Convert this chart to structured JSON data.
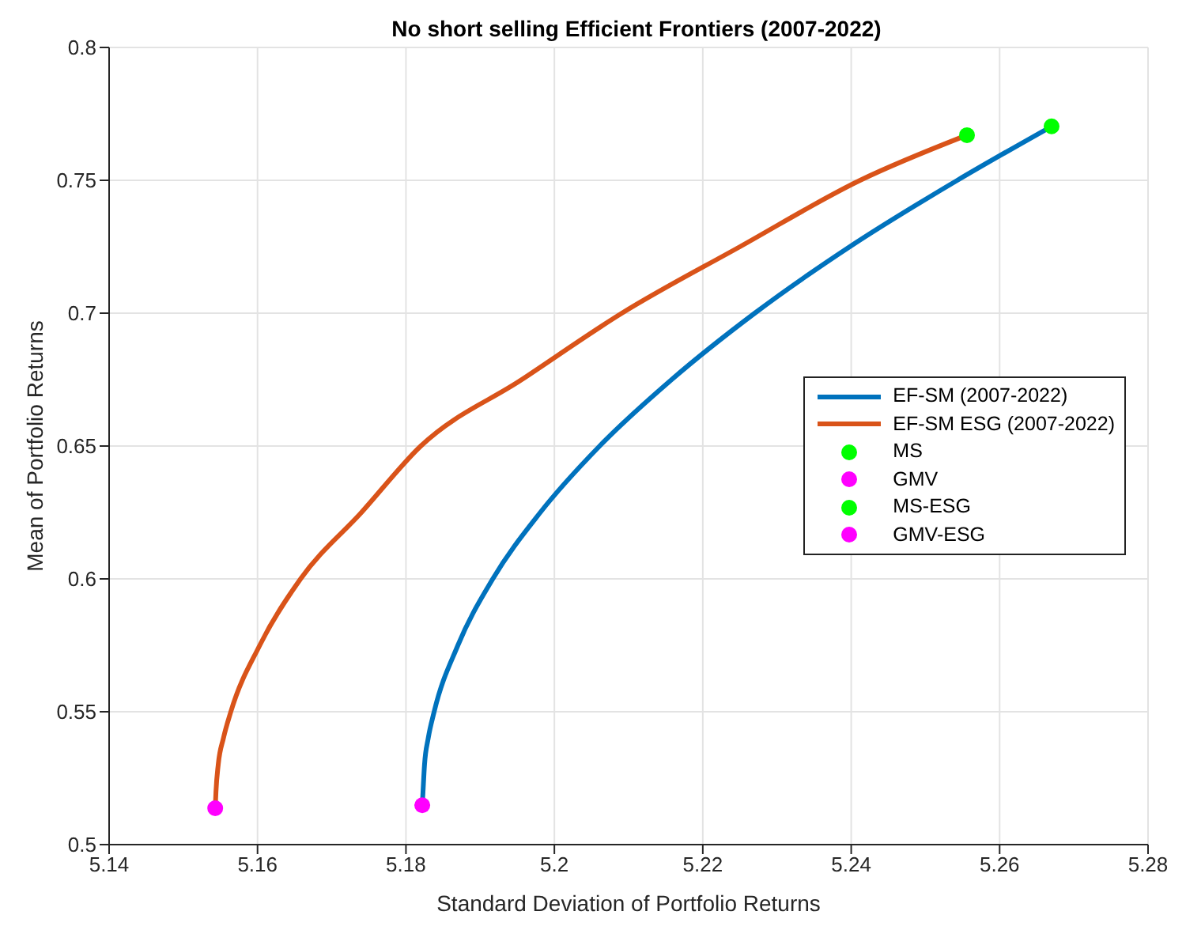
{
  "chart_data": {
    "type": "line",
    "title": "No short selling Efficient Frontiers (2007-2022)",
    "xlabel": "Standard Deviation of Portfolio Returns",
    "ylabel": "Mean of Portfolio Returns",
    "xlim": [
      5.14,
      5.28
    ],
    "xticks": [
      5.14,
      5.16,
      5.18,
      5.2,
      5.22,
      5.24,
      5.26,
      5.28
    ],
    "ylim": [
      0.5,
      0.8
    ],
    "yticks": [
      0.5,
      0.55,
      0.6,
      0.65,
      0.7,
      0.75,
      0.8
    ],
    "grid": true,
    "legend": "right",
    "line_style": "solid",
    "series": [
      {
        "name": "EF-SM (2007-2022)",
        "color": "#0072bd",
        "marker": "none",
        "x": [
          5.1822,
          5.1823,
          5.1825,
          5.183,
          5.1838,
          5.187,
          5.1917,
          5.1981,
          5.2061,
          5.2158,
          5.227,
          5.2398,
          5.2543,
          5.267
        ],
        "values": [
          0.5148,
          0.52,
          0.53,
          0.54,
          0.55,
          0.575,
          0.6,
          0.625,
          0.65,
          0.675,
          0.7,
          0.725,
          0.75,
          0.7703
        ]
      },
      {
        "name": "EF-SM ESG (2007-2022)",
        "color": "#d95319",
        "marker": "none",
        "x": [
          5.1543,
          5.1544,
          5.1547,
          5.1554,
          5.1564,
          5.1603,
          5.1658,
          5.174,
          5.182,
          5.1956,
          5.2091,
          5.225,
          5.2412,
          5.2556
        ],
        "values": [
          0.5137,
          0.52,
          0.53,
          0.54,
          0.55,
          0.575,
          0.6,
          0.625,
          0.65,
          0.675,
          0.7,
          0.725,
          0.75,
          0.767
        ]
      },
      {
        "name": "MS",
        "type": "scatter",
        "color": "#00ff00",
        "marker": "circle",
        "x": [
          5.267
        ],
        "values": [
          0.7703
        ]
      },
      {
        "name": "GMV",
        "type": "scatter",
        "color": "#ff00ff",
        "marker": "circle",
        "x": [
          5.1822
        ],
        "values": [
          0.5148
        ]
      },
      {
        "name": "MS-ESG",
        "type": "scatter",
        "color": "#00ff00",
        "marker": "circle",
        "x": [
          5.2556
        ],
        "values": [
          0.767
        ]
      },
      {
        "name": "GMV-ESG",
        "type": "scatter",
        "color": "#ff00ff",
        "marker": "circle",
        "x": [
          5.1543
        ],
        "values": [
          0.5137
        ]
      }
    ]
  }
}
